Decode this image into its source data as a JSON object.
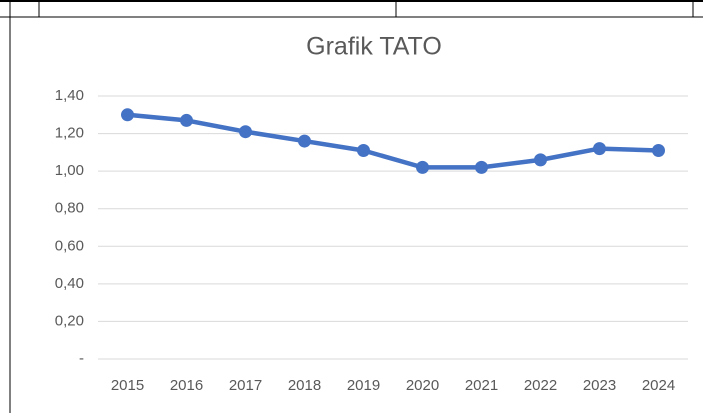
{
  "chart_data": {
    "type": "line",
    "title": "Grafik TATO",
    "categories": [
      "2015",
      "2016",
      "2017",
      "2018",
      "2019",
      "2020",
      "2021",
      "2022",
      "2023",
      "2024"
    ],
    "series": [
      {
        "name": "TATO",
        "color": "#4472c4",
        "values": [
          1.3,
          1.27,
          1.21,
          1.16,
          1.11,
          1.02,
          1.02,
          1.06,
          1.12,
          1.11
        ]
      }
    ],
    "ylim": [
      0,
      1.4
    ],
    "yticks": [
      {
        "value": 0,
        "label": "-"
      },
      {
        "value": 0.2,
        "label": "0,20"
      },
      {
        "value": 0.4,
        "label": "0,40"
      },
      {
        "value": 0.6,
        "label": "0,60"
      },
      {
        "value": 0.8,
        "label": "0,80"
      },
      {
        "value": 1.0,
        "label": "1,00"
      },
      {
        "value": 1.2,
        "label": "1,20"
      },
      {
        "value": 1.4,
        "label": "1,40"
      }
    ],
    "grid": true
  }
}
